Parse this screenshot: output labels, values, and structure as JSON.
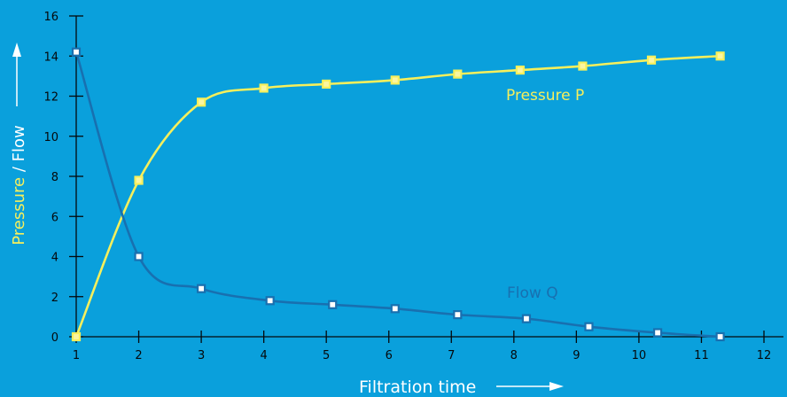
{
  "colors": {
    "background": "#0aa0dc",
    "pressure": "#f6ef5c",
    "flow": "#1870b0",
    "axis": "#05090c",
    "ylabel_pressure": "#f6ef5c",
    "ylabel_flow": "#ffffff"
  },
  "chart_data": {
    "type": "line",
    "title": "",
    "xlabel": "Filtration time",
    "ylabel_parts": [
      "Pressure",
      " / Flow"
    ],
    "xlim": [
      1,
      12
    ],
    "ylim": [
      0,
      16
    ],
    "xticks": [
      1,
      2,
      3,
      4,
      5,
      6,
      7,
      8,
      9,
      10,
      11,
      12
    ],
    "yticks": [
      0,
      2,
      4,
      6,
      8,
      10,
      12,
      14,
      16
    ],
    "grid": false,
    "series": [
      {
        "name": "Pressure P",
        "color": "#f6ef5c",
        "marker": "square",
        "x": [
          1.0,
          2.0,
          3.0,
          4.0,
          5.0,
          6.1,
          7.1,
          8.1,
          9.1,
          10.2,
          11.3
        ],
        "y": [
          0.0,
          7.8,
          11.7,
          12.4,
          12.6,
          12.8,
          13.1,
          13.3,
          13.5,
          13.8,
          14.0
        ]
      },
      {
        "name": "Flow Q",
        "color": "#1870b0",
        "marker": "square",
        "x": [
          1.0,
          2.0,
          3.0,
          4.1,
          5.1,
          6.1,
          7.1,
          8.2,
          9.2,
          10.3,
          11.3
        ],
        "y": [
          14.2,
          4.0,
          2.4,
          1.8,
          1.6,
          1.4,
          1.1,
          0.9,
          0.5,
          0.2,
          0.0
        ]
      }
    ]
  }
}
